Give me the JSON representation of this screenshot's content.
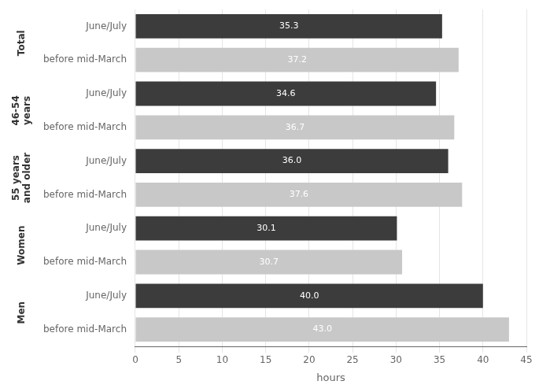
{
  "chart_data": {
    "type": "bar",
    "orientation": "horizontal",
    "categories": [
      "before mid-March",
      "June/July",
      "before mid-March",
      "June/July",
      "before mid-March",
      "June/July",
      "before mid-March",
      "June/July",
      "before mid-March",
      "June/July"
    ],
    "values": [
      43.0,
      40.0,
      30.7,
      30.1,
      37.6,
      36.0,
      36.7,
      34.6,
      37.2,
      35.3
    ],
    "value_labels": [
      "43.0",
      "40.0",
      "30.7",
      "30.1",
      "37.6",
      "36.0",
      "36.7",
      "34.6",
      "37.2",
      "35.3"
    ],
    "colors": [
      "#c8c8c8",
      "#3c3c3c",
      "#c8c8c8",
      "#3c3c3c",
      "#c8c8c8",
      "#3c3c3c",
      "#c8c8c8",
      "#3c3c3c",
      "#c8c8c8",
      "#3c3c3c"
    ],
    "data_labels": true,
    "annotations": [
      "Men",
      "Women",
      "55 years\nand older",
      "46-54\nyears",
      "Total"
    ],
    "xlabel": "hours",
    "xlim": [
      0,
      45
    ],
    "xticks": [
      0,
      5,
      10,
      15,
      20,
      25,
      30,
      35,
      40,
      45
    ],
    "grid": true
  }
}
